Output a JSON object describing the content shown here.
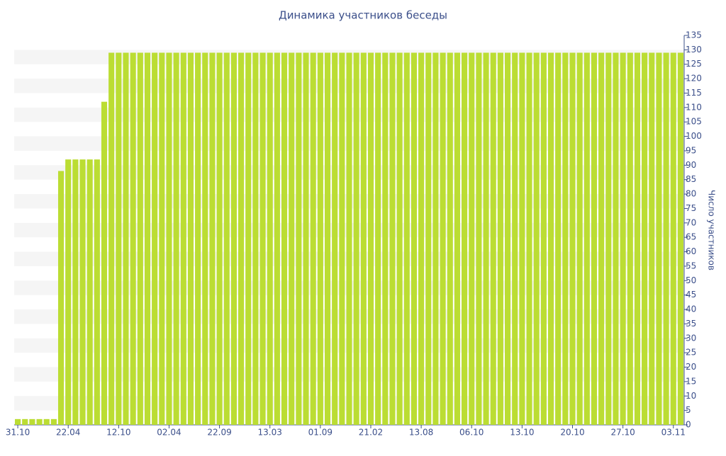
{
  "chart_data": {
    "type": "bar",
    "title": "Динамика участников беседы",
    "y_label": "Число участников",
    "categories": [
      "31.10",
      null,
      null,
      null,
      null,
      null,
      null,
      "22.04",
      null,
      null,
      null,
      null,
      null,
      null,
      "12.10",
      null,
      null,
      null,
      null,
      null,
      null,
      "02.04",
      null,
      null,
      null,
      null,
      null,
      null,
      "22.09",
      null,
      null,
      null,
      null,
      null,
      null,
      "13.03",
      null,
      null,
      null,
      null,
      null,
      null,
      "01.09",
      null,
      null,
      null,
      null,
      null,
      null,
      "21.02",
      null,
      null,
      null,
      null,
      null,
      null,
      "13.08",
      null,
      null,
      null,
      null,
      null,
      null,
      "06.10",
      null,
      null,
      null,
      null,
      null,
      null,
      "13.10",
      null,
      null,
      null,
      null,
      null,
      null,
      "20.10",
      null,
      null,
      null,
      null,
      null,
      null,
      "27.10",
      null,
      null,
      null,
      null,
      null,
      null,
      "03.11",
      null
    ],
    "values": [
      2,
      2,
      2,
      2,
      2,
      2,
      88,
      92,
      92,
      92,
      92,
      92,
      112,
      129,
      129,
      129,
      129,
      129,
      129,
      129,
      129,
      129,
      129,
      129,
      129,
      129,
      129,
      129,
      129,
      129,
      129,
      129,
      129,
      129,
      129,
      129,
      129,
      129,
      129,
      129,
      129,
      129,
      129,
      129,
      129,
      129,
      129,
      129,
      129,
      129,
      129,
      129,
      129,
      129,
      129,
      129,
      129,
      129,
      129,
      129,
      129,
      129,
      129,
      129,
      129,
      129,
      129,
      129,
      129,
      129,
      129,
      129,
      129,
      129,
      129,
      129,
      129,
      129,
      129,
      129,
      129,
      129,
      129,
      129,
      129,
      129,
      129,
      129,
      129,
      129,
      129,
      129,
      129
    ],
    "color": "#bbdd33",
    "ylim": [
      0,
      135
    ],
    "yticks": [
      0,
      5,
      10,
      15,
      20,
      25,
      30,
      35,
      40,
      45,
      50,
      55,
      60,
      65,
      70,
      75,
      80,
      85,
      90,
      95,
      100,
      105,
      110,
      115,
      120,
      125,
      130,
      135
    ],
    "grid": true
  }
}
